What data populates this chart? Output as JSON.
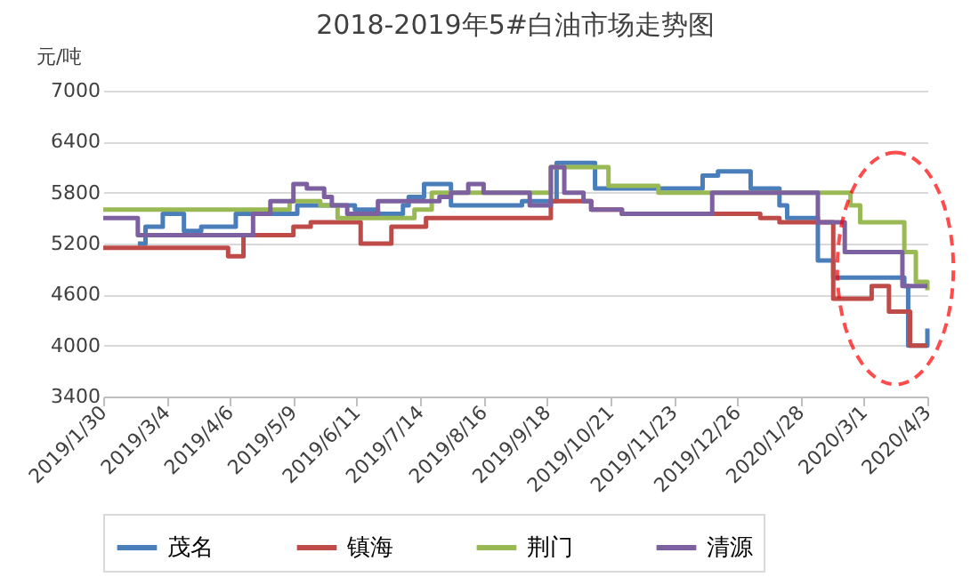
{
  "chart_data": {
    "type": "step",
    "title": "2018-2019年5#白油市场走势图",
    "ylabel": "元/吨",
    "xlim": [
      "2019-01-30",
      "2020-04-03"
    ],
    "xticks": [
      {
        "value": "2019-01-30",
        "label": "2019/1/30"
      },
      {
        "value": "2019-03-04",
        "label": "2019/3/4"
      },
      {
        "value": "2019-04-06",
        "label": "2019/4/6"
      },
      {
        "value": "2019-05-09",
        "label": "2019/5/9"
      },
      {
        "value": "2019-06-11",
        "label": "2019/6/11"
      },
      {
        "value": "2019-07-14",
        "label": "2019/7/14"
      },
      {
        "value": "2019-08-16",
        "label": "2019/8/16"
      },
      {
        "value": "2019-09-18",
        "label": "2019/9/18"
      },
      {
        "value": "2019-10-21",
        "label": "2019/10/21"
      },
      {
        "value": "2019-11-23",
        "label": "2019/11/23"
      },
      {
        "value": "2019-12-26",
        "label": "2019/12/26"
      },
      {
        "value": "2020-01-28",
        "label": "2020/1/28"
      },
      {
        "value": "2020-03-01",
        "label": "2020/3/1"
      },
      {
        "value": "2020-04-03",
        "label": "2020/4/3"
      }
    ],
    "ylim": [
      3400,
      7000
    ],
    "yticks": [
      3400,
      4000,
      4600,
      5200,
      5800,
      6400,
      7000
    ],
    "grid": "y",
    "legend": "bottom",
    "line_style": "solid",
    "series": [
      {
        "name": "茂名",
        "color": "#4a7ebb",
        "x": [
          "2019-02-17",
          "2019-02-21",
          "2019-03-02",
          "2019-03-13",
          "2019-03-22",
          "2019-04-09",
          "2019-05-11",
          "2019-06-10",
          "2019-06-22",
          "2019-07-05",
          "2019-07-08",
          "2019-07-16",
          "2019-07-30",
          "2019-09-05",
          "2019-09-23",
          "2019-10-13",
          "2019-12-08",
          "2019-12-16",
          "2020-01-02",
          "2020-01-17",
          "2020-01-21",
          "2020-02-06",
          "2020-02-14",
          "2020-03-22",
          "2020-03-24",
          "2020-04-03"
        ],
        "values": [
          5200,
          5400,
          5550,
          5350,
          5400,
          5550,
          5650,
          5600,
          5550,
          5650,
          5750,
          5900,
          5650,
          5700,
          6150,
          5850,
          6000,
          6050,
          5850,
          5650,
          5500,
          5000,
          4800,
          4700,
          4000,
          4200
        ]
      },
      {
        "name": "镇海",
        "color": "#be4b48",
        "x": [
          "2019-01-30",
          "2019-04-05",
          "2019-04-13",
          "2019-05-09",
          "2019-05-18",
          "2019-06-13",
          "2019-06-29",
          "2019-07-17",
          "2019-09-11",
          "2019-09-20",
          "2019-10-11",
          "2019-10-27",
          "2020-01-07",
          "2020-01-17",
          "2020-02-14",
          "2020-03-05",
          "2020-03-14",
          "2020-03-25",
          "2020-04-03"
        ],
        "values": [
          5150,
          5050,
          5300,
          5400,
          5450,
          5200,
          5400,
          5500,
          5500,
          5700,
          5600,
          5550,
          5500,
          5450,
          4550,
          4700,
          4400,
          4000,
          4000
        ]
      },
      {
        "name": "荆门",
        "color": "#98b954",
        "x": [
          "2019-01-30",
          "2019-05-07",
          "2019-05-23",
          "2019-06-01",
          "2019-07-11",
          "2019-07-20",
          "2019-09-20",
          "2019-10-20",
          "2019-11-15",
          "2020-02-23",
          "2020-02-28",
          "2020-03-22",
          "2020-03-28",
          "2020-04-03"
        ],
        "values": [
          5600,
          5700,
          5650,
          5500,
          5600,
          5800,
          6100,
          5880,
          5800,
          5650,
          5450,
          5100,
          4750,
          4650
        ]
      },
      {
        "name": "清源",
        "color": "#7d60a0",
        "x": [
          "2019-01-30",
          "2019-02-17",
          "2019-02-28",
          "2019-04-18",
          "2019-04-27",
          "2019-05-09",
          "2019-05-16",
          "2019-05-25",
          "2019-05-29",
          "2019-06-06",
          "2019-06-22",
          "2019-07-24",
          "2019-07-30",
          "2019-08-08",
          "2019-08-16",
          "2019-09-09",
          "2019-09-20",
          "2019-09-27",
          "2019-10-07",
          "2019-10-11",
          "2019-10-27",
          "2019-12-13",
          "2020-02-06",
          "2020-02-20",
          "2020-03-21",
          "2020-04-03"
        ],
        "values": [
          5500,
          5300,
          5300,
          5550,
          5700,
          5900,
          5850,
          5750,
          5650,
          5550,
          5700,
          5750,
          5800,
          5900,
          5800,
          5650,
          6100,
          5800,
          5700,
          5600,
          5550,
          5800,
          5450,
          5100,
          4700,
          4700
        ]
      }
    ]
  }
}
